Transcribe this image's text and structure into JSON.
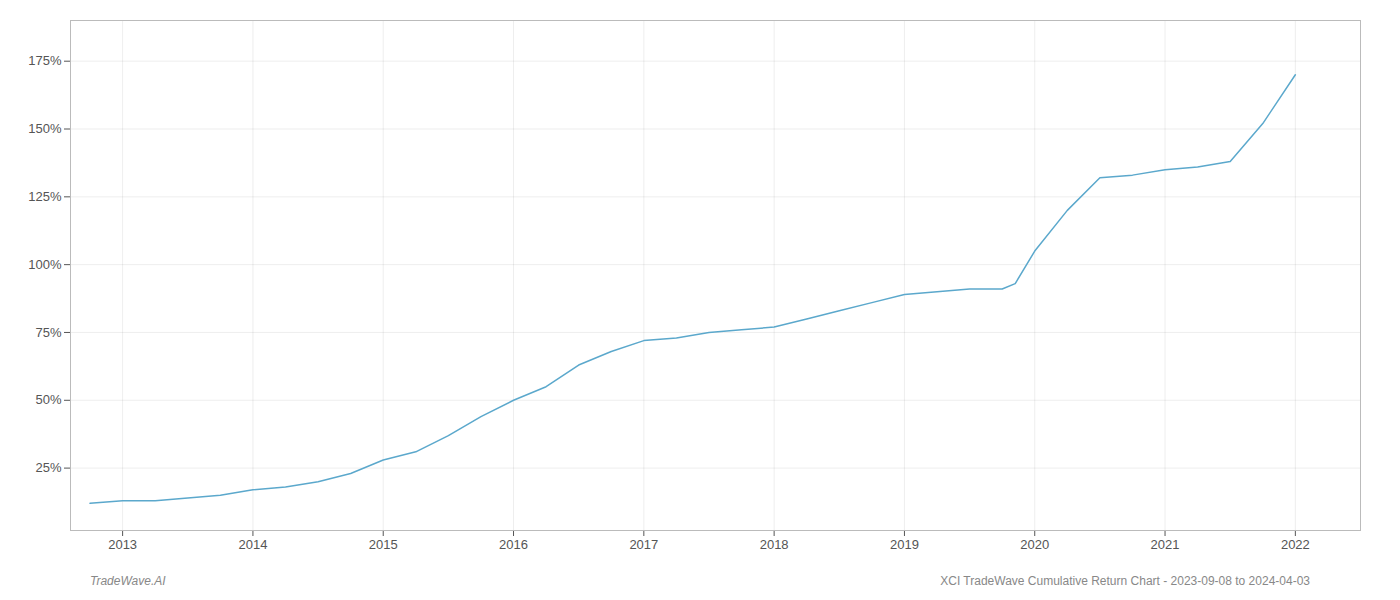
{
  "chart_data": {
    "type": "line",
    "x": [
      2012.75,
      2013.0,
      2013.25,
      2013.5,
      2013.75,
      2014.0,
      2014.25,
      2014.5,
      2014.75,
      2015.0,
      2015.25,
      2015.5,
      2015.75,
      2016.0,
      2016.25,
      2016.5,
      2016.75,
      2017.0,
      2017.25,
      2017.5,
      2017.75,
      2018.0,
      2018.25,
      2018.5,
      2018.75,
      2019.0,
      2019.25,
      2019.5,
      2019.75,
      2019.85,
      2020.0,
      2020.25,
      2020.5,
      2020.75,
      2021.0,
      2021.25,
      2021.5,
      2021.75,
      2022.0
    ],
    "values": [
      12,
      13,
      13,
      14,
      15,
      17,
      18,
      20,
      23,
      28,
      31,
      37,
      44,
      50,
      55,
      63,
      68,
      72,
      73,
      75,
      76,
      77,
      80,
      83,
      86,
      89,
      90,
      91,
      91,
      93,
      105,
      120,
      132,
      133,
      135,
      136,
      138,
      152,
      170
    ],
    "color": "#5ba8cc",
    "xlim": [
      2012.6,
      2022.5
    ],
    "xticks": [
      2013,
      2014,
      2015,
      2016,
      2017,
      2018,
      2019,
      2020,
      2021,
      2022
    ],
    "ylim": [
      2,
      190
    ],
    "yticks": [
      {
        "value": 25,
        "label": "25%"
      },
      {
        "value": 50,
        "label": "50%"
      },
      {
        "value": 75,
        "label": "75%"
      },
      {
        "value": 100,
        "label": "100%"
      },
      {
        "value": 125,
        "label": "125%"
      },
      {
        "value": 150,
        "label": "150%"
      },
      {
        "value": 175,
        "label": "175%"
      }
    ],
    "grid": true,
    "annotations": [
      "TradeWave.AI",
      "XCI TradeWave Cumulative Return Chart - 2023-09-08 to 2024-04-03"
    ]
  }
}
